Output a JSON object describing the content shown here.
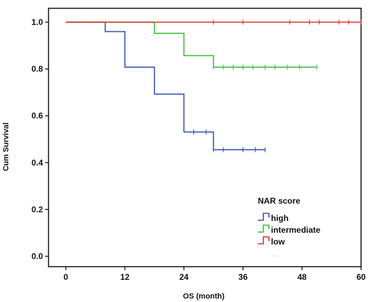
{
  "chart_data": {
    "type": "line",
    "subtype": "kaplan-meier",
    "title": "",
    "xlabel": "OS (month)",
    "ylabel": "Cum Survival",
    "xlim": [
      0,
      60
    ],
    "ylim": [
      0,
      1.0
    ],
    "xticks": [
      0,
      12,
      24,
      36,
      48,
      60
    ],
    "yticks": [
      0.0,
      0.2,
      0.4,
      0.6,
      0.8,
      1.0
    ],
    "xtick_labels": [
      "0",
      "12",
      "24",
      "36",
      "48",
      "60"
    ],
    "ytick_labels": [
      "0.0",
      "0.2",
      "0.4",
      "0.6",
      "0.8",
      "1.0"
    ],
    "grid": false,
    "legend": {
      "title": "NAR score",
      "placement": "bottom-right",
      "extra_text": "..."
    },
    "series": [
      {
        "name": "high",
        "color": "#3a56b5",
        "steps": [
          [
            0,
            1.0
          ],
          [
            8,
            0.96
          ],
          [
            12,
            0.808
          ],
          [
            18,
            0.693
          ],
          [
            24,
            0.531
          ],
          [
            30,
            0.455
          ],
          [
            40.5,
            0.455
          ]
        ],
        "censored": [
          [
            26,
            0.531
          ],
          [
            28.5,
            0.531
          ],
          [
            30,
            0.455
          ],
          [
            32,
            0.455
          ],
          [
            36,
            0.455
          ],
          [
            38.5,
            0.455
          ],
          [
            40.5,
            0.455
          ]
        ]
      },
      {
        "name": "intermediate",
        "color": "#3fbf3f",
        "steps": [
          [
            0,
            1.0
          ],
          [
            18,
            0.952
          ],
          [
            24,
            0.857
          ],
          [
            30,
            0.808
          ],
          [
            51,
            0.808
          ]
        ],
        "censored": [
          [
            30,
            0.808
          ],
          [
            32,
            0.808
          ],
          [
            34,
            0.808
          ],
          [
            36,
            0.808
          ],
          [
            38,
            0.808
          ],
          [
            40.5,
            0.808
          ],
          [
            42.5,
            0.808
          ],
          [
            45,
            0.808
          ],
          [
            47.5,
            0.808
          ],
          [
            51,
            0.808
          ]
        ]
      },
      {
        "name": "low",
        "color": "#e03232",
        "steps": [
          [
            0,
            1.0
          ],
          [
            60,
            1.0
          ]
        ],
        "censored": [
          [
            30,
            1.0
          ],
          [
            36,
            1.0
          ],
          [
            45.5,
            1.0
          ],
          [
            49.5,
            1.0
          ],
          [
            51.5,
            1.0
          ],
          [
            55.5,
            1.0
          ],
          [
            57.5,
            1.0
          ],
          [
            60,
            1.0
          ]
        ]
      }
    ]
  }
}
